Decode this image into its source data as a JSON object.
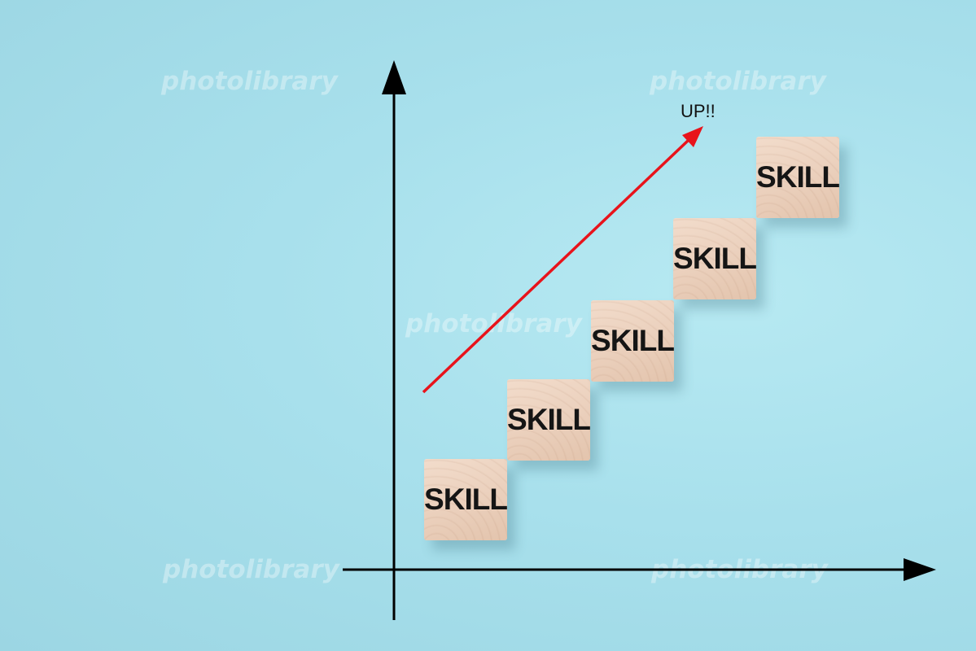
{
  "annotation": {
    "text": "UP!!"
  },
  "blocks": [
    {
      "label": "SKILL"
    },
    {
      "label": "SKILL"
    },
    {
      "label": "SKILL"
    },
    {
      "label": "SKILL"
    },
    {
      "label": "SKILL"
    }
  ],
  "watermark": {
    "text": "photolibrary"
  },
  "colors": {
    "background": "#a8e0ec",
    "arrow": "#e8131b",
    "axis": "#000000",
    "block": "#ecd2bf"
  }
}
